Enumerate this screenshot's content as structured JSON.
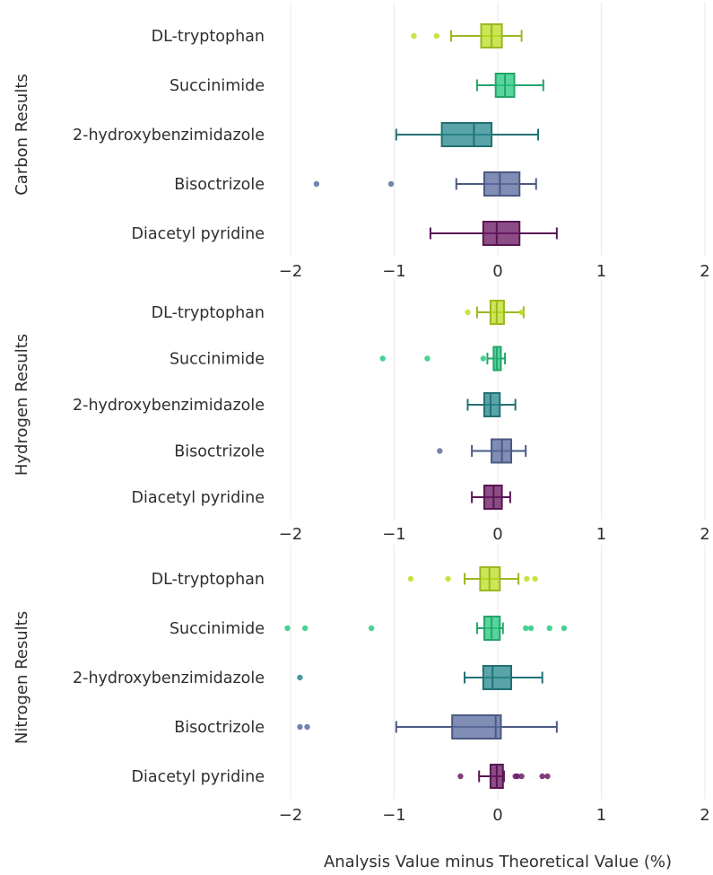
{
  "chart_data": {
    "type": "box",
    "orientation": "horizontal",
    "xlabel": "Analysis Value minus Theoretical Value (%)",
    "xlim": [
      -2.3,
      2.0
    ],
    "xticks": [
      -2,
      -1,
      0,
      1,
      2
    ],
    "xtick_labels": [
      "−2",
      "−1",
      "0",
      "1",
      "2"
    ],
    "grid": "vertical",
    "categories": [
      "DL-tryptophan",
      "Succinimide",
      "2-hydroxybenzimidazole",
      "Bisoctrizole",
      "Diacetyl pyridine"
    ],
    "colors": {
      "DL-tryptophan": "#bddf26",
      "Succinimide": "#29c981",
      "2-hydroxybenzimidazole": "#2a8a8f",
      "Bisoctrizole": "#5c6da0",
      "Diacetyl pyridine": "#6b1b65"
    },
    "panels": [
      {
        "title": "Carbon Results",
        "boxes": [
          {
            "category": "DL-tryptophan",
            "whisker_low": -0.45,
            "q1": -0.16,
            "median": -0.06,
            "q3": 0.04,
            "whisker_high": 0.23,
            "outliers": [
              -0.81,
              -0.59
            ]
          },
          {
            "category": "Succinimide",
            "whisker_low": -0.2,
            "q1": -0.02,
            "median": 0.07,
            "q3": 0.16,
            "whisker_high": 0.44,
            "outliers": []
          },
          {
            "category": "2-hydroxybenzimidazole",
            "whisker_low": -0.98,
            "q1": -0.54,
            "median": -0.23,
            "q3": -0.06,
            "whisker_high": 0.39,
            "outliers": []
          },
          {
            "category": "Bisoctrizole",
            "whisker_low": -0.4,
            "q1": -0.13,
            "median": 0.02,
            "q3": 0.21,
            "whisker_high": 0.37,
            "outliers": [
              -1.75,
              -1.03
            ]
          },
          {
            "category": "Diacetyl pyridine",
            "whisker_low": -0.65,
            "q1": -0.14,
            "median": -0.01,
            "q3": 0.21,
            "whisker_high": 0.57,
            "outliers": []
          }
        ]
      },
      {
        "title": "Hydrogen Results",
        "boxes": [
          {
            "category": "DL-tryptophan",
            "whisker_low": -0.2,
            "q1": -0.07,
            "median": -0.01,
            "q3": 0.06,
            "whisker_high": 0.25,
            "outliers": [
              -0.29,
              0.23
            ]
          },
          {
            "category": "Succinimide",
            "whisker_low": -0.1,
            "q1": -0.04,
            "median": -0.01,
            "q3": 0.03,
            "whisker_high": 0.07,
            "outliers": [
              -1.11,
              -0.68,
              -0.14
            ]
          },
          {
            "category": "2-hydroxybenzimidazole",
            "whisker_low": -0.29,
            "q1": -0.13,
            "median": -0.07,
            "q3": 0.02,
            "whisker_high": 0.17,
            "outliers": []
          },
          {
            "category": "Bisoctrizole",
            "whisker_low": -0.25,
            "q1": -0.06,
            "median": 0.04,
            "q3": 0.13,
            "whisker_high": 0.27,
            "outliers": [
              -0.56
            ]
          },
          {
            "category": "Diacetyl pyridine",
            "whisker_low": -0.25,
            "q1": -0.13,
            "median": -0.04,
            "q3": 0.04,
            "whisker_high": 0.12,
            "outliers": []
          }
        ]
      },
      {
        "title": "Nitrogen Results",
        "boxes": [
          {
            "category": "DL-tryptophan",
            "whisker_low": -0.32,
            "q1": -0.17,
            "median": -0.08,
            "q3": 0.02,
            "whisker_high": 0.2,
            "outliers": [
              -0.84,
              -0.48,
              0.28,
              0.36
            ]
          },
          {
            "category": "Succinimide",
            "whisker_low": -0.2,
            "q1": -0.13,
            "median": -0.06,
            "q3": 0.02,
            "whisker_high": 0.05,
            "outliers": [
              -2.03,
              -1.86,
              -1.22,
              0.27,
              0.32,
              0.5,
              0.64
            ]
          },
          {
            "category": "2-hydroxybenzimidazole",
            "whisker_low": -0.32,
            "q1": -0.14,
            "median": -0.05,
            "q3": 0.13,
            "whisker_high": 0.43,
            "outliers": [
              -1.91
            ]
          },
          {
            "category": "Bisoctrizole",
            "whisker_low": -0.98,
            "q1": -0.44,
            "median": -0.02,
            "q3": 0.03,
            "whisker_high": 0.57,
            "outliers": [
              -1.91,
              -1.84
            ]
          },
          {
            "category": "Diacetyl pyridine",
            "whisker_low": -0.18,
            "q1": -0.07,
            "median": -0.01,
            "q3": 0.05,
            "whisker_high": 0.06,
            "outliers": [
              -0.36,
              0.17,
              0.19,
              0.23,
              0.43,
              0.48
            ]
          }
        ]
      }
    ]
  }
}
